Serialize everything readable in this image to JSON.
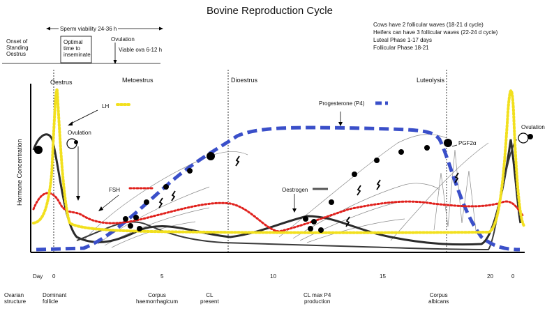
{
  "title": "Bovine Reproduction Cycle",
  "notes": [
    "Cows have 2 follicular waves (18-21 d cycle)",
    "Heifers can have 3 follicular waves (22-24 d cycle)",
    "Luteal Phase 1-17 days",
    "Follicular Phase 18-21"
  ],
  "timeline": {
    "sperm_viability": "Sperm viability 24-36 h",
    "onset": "Onset of\nStanding\nOestrus",
    "optimal": "Optimal\ntime to\ninseminate",
    "ovulation": "Ovulation",
    "viable_ova": "Viable ova 6-12 h"
  },
  "phases": {
    "oestrus": "Oestrus",
    "metoestrus": "Metoestrus",
    "dioestrus": "Dioestrus",
    "luteolysis": "Luteolysis"
  },
  "yaxis_label": "Hormone Concentration",
  "xaxis": {
    "day_label": "Day",
    "ticks": [
      "0",
      "5",
      "10",
      "15",
      "20",
      "0"
    ]
  },
  "hormone_labels": {
    "lh": "LH",
    "ovulation_left": "Ovulation",
    "fsh": "FSH",
    "progesterone": "Progesterone  (P4)",
    "oestrogen": "Oestrogen",
    "pgf": "PGF2α",
    "ovulation_right": "Ovulation"
  },
  "ovarian": {
    "row_label": "Ovarian\nstructure",
    "dominant": "Dominant\nfollicle",
    "corpus_h": "Corpus\nhaemorrhagicum",
    "cl_present": "CL\npresent",
    "cl_max": "CL max P4\nproduction",
    "corpus_a": "Corpus\nalbicans"
  },
  "colors": {
    "lh": "#f2e01e",
    "fsh": "#e0201c",
    "progesterone": "#3a4fc9",
    "oestrogen": "#555555",
    "follicle": "#222222"
  }
}
